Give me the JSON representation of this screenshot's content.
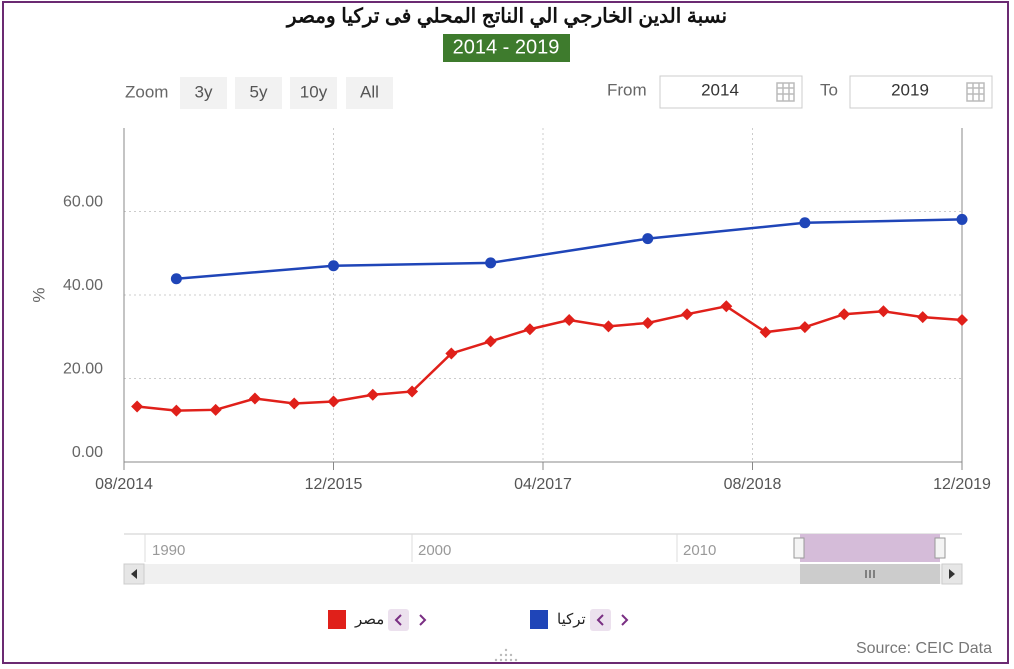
{
  "chart_data": {
    "type": "line",
    "title": "نسبة الدين الخارجي الي الناتج المحلي فى تركيا ومصر",
    "subtitle": "2014 - 2019",
    "y_label": "%",
    "xlim": [
      "08/2014",
      "12/2019"
    ],
    "xticks": [
      "08/2014",
      "12/2015",
      "04/2017",
      "08/2018",
      "12/2019"
    ],
    "ylim": [
      0,
      80
    ],
    "yticks": [
      {
        "value": 0,
        "label": "0.00"
      },
      {
        "value": 20,
        "label": "20.00"
      },
      {
        "value": 40,
        "label": "40.00"
      },
      {
        "value": 60,
        "label": "60.00"
      }
    ],
    "grid": true,
    "series": [
      {
        "name": "مصر",
        "color": "#e0201a",
        "marker": "diamond",
        "x": [
          "09/2014",
          "12/2014",
          "03/2015",
          "06/2015",
          "09/2015",
          "12/2015",
          "03/2016",
          "06/2016",
          "09/2016",
          "12/2016",
          "03/2017",
          "06/2017",
          "09/2017",
          "12/2017",
          "03/2018",
          "06/2018",
          "09/2018",
          "12/2018",
          "03/2019",
          "06/2019",
          "09/2019",
          "12/2019"
        ],
        "values": [
          13.3,
          12.3,
          12.5,
          15.2,
          14.0,
          14.5,
          16.1,
          16.9,
          26.0,
          28.9,
          31.8,
          34.0,
          32.5,
          33.3,
          35.4,
          37.3,
          31.1,
          32.3,
          35.4,
          36.1,
          34.7,
          34.0
        ]
      },
      {
        "name": "تركيا",
        "color": "#1f45b8",
        "marker": "circle",
        "x": [
          "12/2014",
          "12/2015",
          "12/2016",
          "12/2017",
          "12/2018",
          "12/2019"
        ],
        "values": [
          43.9,
          47.0,
          47.7,
          53.5,
          57.3,
          58.1
        ]
      }
    ]
  },
  "range_selector": {
    "zoom_label": "Zoom",
    "buttons": [
      "3y",
      "5y",
      "10y",
      "All"
    ],
    "from_label": "From",
    "from": "2014",
    "to_label": "To",
    "to": "2019"
  },
  "navigator": {
    "labels": [
      "1990",
      "2000",
      "2010"
    ]
  },
  "source": "Source: CEIC Data"
}
